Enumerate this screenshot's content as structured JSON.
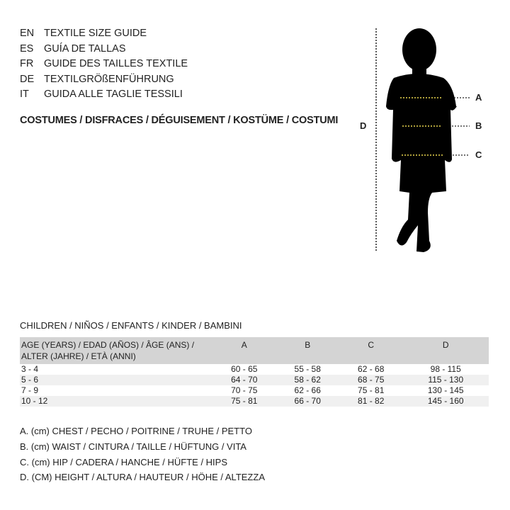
{
  "titles": [
    {
      "code": "EN",
      "text": "TEXTILE SIZE GUIDE"
    },
    {
      "code": "ES",
      "text": "GUÍA DE TALLAS"
    },
    {
      "code": "FR",
      "text": "GUIDE DES TAILLES TEXTILE"
    },
    {
      "code": "DE",
      "text": "TEXTILGRÖßENFÜHRUNG"
    },
    {
      "code": "IT",
      "text": "GUIDA ALLE TAGLIE TESSILI"
    }
  ],
  "category": "COSTUMES / DISFRACES / DÉGUISEMENT / KOSTÜME / COSTUMI",
  "diagram": {
    "labels": {
      "a": "A",
      "b": "B",
      "c": "C",
      "d": "D"
    },
    "measure_line_color": "#e8d44d"
  },
  "section": "CHILDREN / NIÑOS / ENFANTS / KINDER / BAMBINI",
  "table": {
    "headers": [
      "AGE (YEARS) / EDAD (AÑOS) / ÂGE (ANS) / ALTER (JAHRE) / ETÀ (ANNI)",
      "A",
      "B",
      "C",
      "D"
    ],
    "rows": [
      [
        "3 - 4",
        "60 - 65",
        "55 - 58",
        "62 - 68",
        "98 - 115"
      ],
      [
        "5 - 6",
        "64 - 70",
        "58 - 62",
        "68 - 75",
        "115 - 130"
      ],
      [
        "7 - 9",
        "70 - 75",
        "62 - 66",
        "75 - 81",
        "130 - 145"
      ],
      [
        "10 - 12",
        "75 - 81",
        "66 - 70",
        "81 - 82",
        "145 - 160"
      ]
    ]
  },
  "legend": [
    "A. (cm) CHEST / PECHO / POITRINE / TRUHE / PETTO",
    "B. (cm) WAIST / CINTURA / TAILLE / HÜFTUNG / VITA",
    "C. (cm) HIP / CADERA / HANCHE / HÜFTE / HIPS",
    "D. (CM) HEIGHT / ALTURA / HAUTEUR / HÖHE / ALTEZZA"
  ]
}
